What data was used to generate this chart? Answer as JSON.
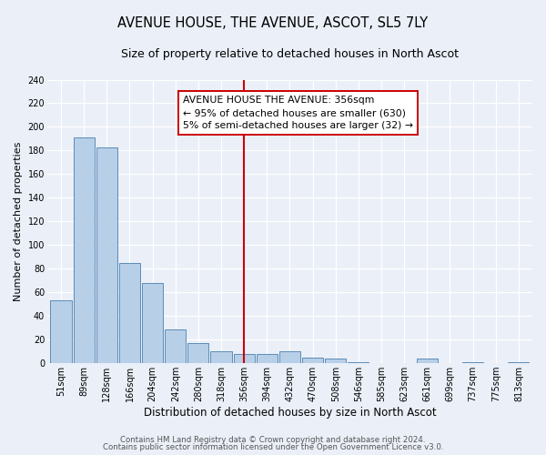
{
  "title": "AVENUE HOUSE, THE AVENUE, ASCOT, SL5 7LY",
  "subtitle": "Size of property relative to detached houses in North Ascot",
  "xlabel": "Distribution of detached houses by size in North Ascot",
  "ylabel": "Number of detached properties",
  "bin_labels": [
    "51sqm",
    "89sqm",
    "128sqm",
    "166sqm",
    "204sqm",
    "242sqm",
    "280sqm",
    "318sqm",
    "356sqm",
    "394sqm",
    "432sqm",
    "470sqm",
    "508sqm",
    "546sqm",
    "585sqm",
    "623sqm",
    "661sqm",
    "699sqm",
    "737sqm",
    "775sqm",
    "813sqm"
  ],
  "bar_heights": [
    53,
    191,
    183,
    85,
    68,
    29,
    17,
    10,
    8,
    8,
    10,
    5,
    4,
    1,
    0,
    0,
    4,
    0,
    1,
    0,
    1
  ],
  "bar_color": "#b8cfe8",
  "bar_edge_color": "#5b8db8",
  "highlight_line_color": "#cc0000",
  "annotation_title": "AVENUE HOUSE THE AVENUE: 356sqm",
  "annotation_line1": "← 95% of detached houses are smaller (630)",
  "annotation_line2": "5% of semi-detached houses are larger (32) →",
  "annotation_box_color": "#ffffff",
  "annotation_box_edge_color": "#cc0000",
  "background_color": "#eaeff8",
  "ylim_max": 240,
  "yticks": [
    0,
    20,
    40,
    60,
    80,
    100,
    120,
    140,
    160,
    180,
    200,
    220,
    240
  ],
  "footer1": "Contains HM Land Registry data © Crown copyright and database right 2024.",
  "footer2": "Contains public sector information licensed under the Open Government Licence v3.0.",
  "title_fontsize": 10.5,
  "subtitle_fontsize": 9,
  "xlabel_fontsize": 8.5,
  "ylabel_fontsize": 8,
  "tick_fontsize": 7,
  "annotation_fontsize": 7.8,
  "footer_fontsize": 6.2
}
